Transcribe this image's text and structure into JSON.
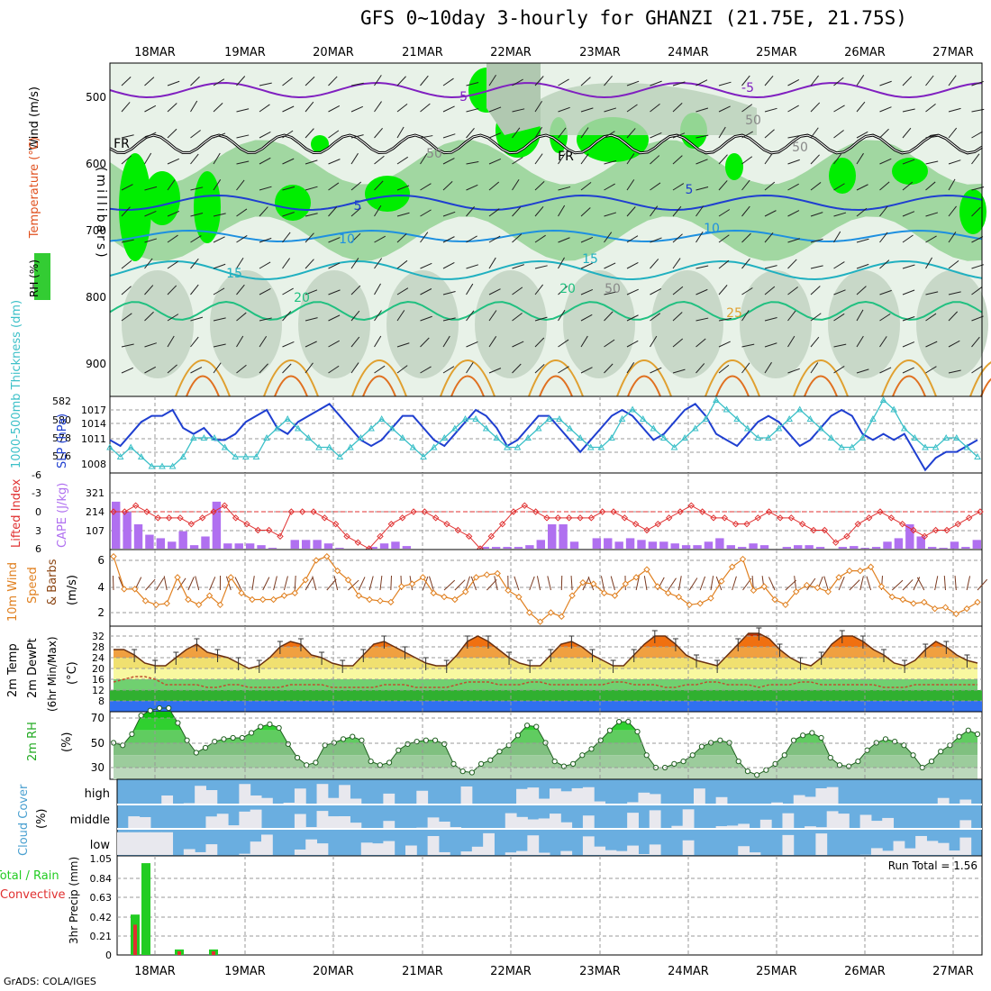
{
  "title": "GFS 0~10day 3-hourly for GHANZI (21.75E, 21.75S)",
  "credit": "GrADS: COLA/IGES",
  "colors": {
    "rh_light": "#dfeedf",
    "rh_mid": "#8fcf8f",
    "rh_dark": "#33cc33",
    "rh_vivid": "#00ee00",
    "slp": "#1f3fd0",
    "thickness": "#3cc0c8",
    "lifted": "#e03030",
    "cape": "#b070f0",
    "wind": "#e08020",
    "temp_bands": [
      "#c03000",
      "#f07010",
      "#f0a040",
      "#f0e070",
      "#f8f8a0",
      "#70d070",
      "#30b030",
      "#3070f0"
    ],
    "cloud_bg": "#6aaee0",
    "cloud_fill": "#e8e8ee",
    "precip_total": "#22cc22",
    "precip_conv": "#e03030"
  },
  "time_axis": {
    "labels": [
      "18MAR",
      "19MAR",
      "20MAR",
      "21MAR",
      "22MAR",
      "23MAR",
      "24MAR",
      "25MAR",
      "26MAR",
      "27MAR"
    ]
  },
  "panels": {
    "upper": {
      "ylabel": "(millibars)",
      "legend_wind": "Wind (m/s)",
      "legend_temp": "Temperature (°C)",
      "legend_rh": "RH (%)",
      "yticks": [
        "500",
        "600",
        "700",
        "800",
        "900"
      ],
      "contour_labels": [
        "-5",
        "-5",
        "FR",
        "FR",
        "5",
        "5",
        "10",
        "10",
        "15",
        "15",
        "20",
        "20",
        "25",
        "50",
        "50",
        "50",
        "50"
      ]
    },
    "slp": {
      "ylabel_left": "1000-500mb Thickness (dm)",
      "ylabel_right": "SLP (hPa)",
      "left_ticks": [
        "582",
        "580",
        "578",
        "576"
      ],
      "right_ticks": [
        "1017",
        "1014",
        "1011",
        "1008"
      ]
    },
    "cape": {
      "ylabel_left": "Lifted Index",
      "ylabel_right": "CAPE (J/kg)",
      "left_ticks": [
        "-6",
        "-3",
        "0",
        "3",
        "6"
      ],
      "right_ticks": [
        "321",
        "214",
        "107"
      ]
    },
    "wind10": {
      "ylabel1": "10m Wind",
      "ylabel2": "Speed",
      "ylabel3": "& Barbs",
      "ylabel4": "(m/s)",
      "ticks": [
        "6",
        "4",
        "2"
      ]
    },
    "temp2m": {
      "ylabel1": "2m Temp",
      "ylabel2": "2m DewPt",
      "ylabel3": "(6hr Min/Max)",
      "ylabel4": "(°C)",
      "ticks": [
        "32",
        "28",
        "24",
        "20",
        "16",
        "12",
        "8"
      ]
    },
    "rh2m": {
      "ylabel1": "2m RH",
      "ylabel2": "(%)",
      "ticks": [
        "70",
        "50",
        "30"
      ]
    },
    "cloud": {
      "ylabel1": "Cloud Cover",
      "ylabel2": "(%)",
      "levels": [
        "high",
        "middle",
        "low"
      ]
    },
    "precip": {
      "ylabel1": "Total / Rain",
      "ylabel2": "Convective",
      "ylabel3": "3hr Precip (mm)",
      "ticks": [
        "1.05",
        "0.84",
        "0.63",
        "0.42",
        "0.21",
        "0"
      ],
      "run_total": "Run Total = 1.56"
    }
  },
  "chart_data": [
    {
      "type": "line",
      "title": "SLP and 1000-500mb Thickness",
      "series": [
        {
          "name": "SLP (hPa)",
          "values": [
            1012,
            1011,
            1013,
            1015,
            1016,
            1016,
            1017,
            1014,
            1013,
            1014,
            1012,
            1012,
            1013,
            1015,
            1016,
            1017,
            1014,
            1013,
            1015,
            1016,
            1017,
            1018,
            1016,
            1014,
            1012,
            1011,
            1012,
            1014,
            1016,
            1016,
            1014,
            1012,
            1011,
            1013,
            1015,
            1017,
            1016,
            1014,
            1011,
            1012,
            1014,
            1016,
            1016,
            1014,
            1012,
            1010,
            1012,
            1014,
            1016,
            1017,
            1016,
            1014,
            1012,
            1013,
            1015,
            1017,
            1018,
            1016,
            1013,
            1012,
            1011,
            1013,
            1015,
            1016,
            1015,
            1013,
            1011,
            1012,
            1014,
            1016,
            1017,
            1016,
            1013,
            1012,
            1013,
            1012,
            1013,
            1010,
            1007,
            1009,
            1010,
            1010,
            1011,
            1012
          ]
        },
        {
          "name": "Thickness (dm)",
          "values": [
            577,
            576,
            577,
            576,
            575,
            575,
            575,
            576,
            578,
            578,
            578,
            577,
            576,
            576,
            576,
            578,
            579,
            580,
            579,
            578,
            577,
            577,
            576,
            577,
            578,
            579,
            580,
            579,
            578,
            577,
            576,
            577,
            578,
            579,
            580,
            580,
            579,
            578,
            577,
            577,
            578,
            579,
            580,
            580,
            579,
            578,
            577,
            577,
            578,
            580,
            581,
            580,
            579,
            578,
            577,
            578,
            579,
            580,
            582,
            581,
            580,
            579,
            578,
            578,
            579,
            580,
            581,
            580,
            579,
            578,
            577,
            577,
            578,
            580,
            582,
            581,
            579,
            578,
            577,
            577,
            578,
            578,
            577,
            576
          ]
        }
      ]
    },
    {
      "type": "bar",
      "title": "Lifted Index and CAPE",
      "series": [
        {
          "name": "CAPE (J/kg)",
          "values": [
            270,
            210,
            140,
            80,
            60,
            40,
            100,
            20,
            70,
            270,
            30,
            30,
            30,
            20,
            5,
            0,
            50,
            50,
            50,
            30,
            5,
            0,
            0,
            10,
            30,
            40,
            15,
            0,
            0,
            0,
            0,
            0,
            0,
            10,
            10,
            10,
            10,
            20,
            50,
            140,
            140,
            40,
            0,
            60,
            60,
            40,
            60,
            50,
            40,
            40,
            30,
            20,
            20,
            40,
            60,
            20,
            10,
            30,
            20,
            0,
            10,
            20,
            20,
            10,
            0,
            10,
            15,
            5,
            10,
            40,
            60,
            140,
            70,
            10,
            5,
            40,
            10,
            50
          ]
        },
        {
          "name": "Lifted Index",
          "values": [
            0,
            0,
            -1,
            0,
            1,
            1,
            1,
            2,
            1,
            0,
            -1,
            1,
            2,
            3,
            3,
            4,
            0,
            0,
            0,
            1,
            2,
            4,
            5,
            6,
            4,
            2,
            1,
            0,
            0,
            1,
            2,
            3,
            4,
            6,
            4,
            2,
            0,
            -1,
            0,
            1,
            1,
            1,
            1,
            1,
            0,
            0,
            1,
            2,
            3,
            2,
            1,
            0,
            -1,
            0,
            1,
            1,
            2,
            2,
            1,
            0,
            1,
            1,
            2,
            3,
            3,
            5,
            4,
            2,
            1,
            0,
            1,
            2,
            3,
            4,
            3,
            3,
            2,
            1,
            0
          ]
        }
      ]
    },
    {
      "type": "line",
      "title": "10m Wind Speed",
      "series": [
        {
          "name": "Speed (m/s)",
          "values": [
            6.3,
            3.8,
            3.8,
            2.9,
            2.6,
            2.7,
            4.7,
            3.0,
            2.6,
            3.3,
            2.6,
            4.7,
            3.5,
            3.0,
            3.0,
            3.0,
            3.3,
            3.5,
            4.5,
            6.0,
            6.3,
            5.2,
            4.5,
            3.3,
            3.0,
            2.9,
            2.8,
            4.0,
            4.2,
            4.7,
            3.5,
            3.2,
            3.0,
            3.6,
            4.7,
            4.9,
            5.0,
            3.7,
            3.2,
            2.0,
            1.3,
            2.0,
            1.7,
            3.3,
            4.3,
            4.2,
            3.5,
            3.3,
            4.2,
            4.7,
            5.3,
            4.0,
            3.5,
            3.2,
            2.6,
            2.7,
            3.1,
            4.4,
            5.5,
            6.1,
            3.7,
            4.0,
            3.0,
            2.6,
            3.6,
            4.1,
            3.9,
            3.6,
            4.7,
            5.2,
            5.2,
            5.5,
            4.0,
            3.2,
            3.0,
            2.7,
            2.8,
            2.3,
            2.4,
            1.9,
            2.3,
            2.8
          ]
        }
      ]
    },
    {
      "type": "area",
      "title": "2m Temp",
      "series": [
        {
          "name": "2m Temp (°C)",
          "values": [
            27,
            27,
            25,
            22,
            21,
            21,
            24,
            27,
            29,
            26,
            25,
            24,
            22,
            20,
            21,
            24,
            28,
            30,
            29,
            25,
            24,
            22,
            21,
            21,
            25,
            29,
            30,
            28,
            26,
            24,
            22,
            21,
            21,
            25,
            30,
            32,
            30,
            27,
            24,
            22,
            21,
            21,
            25,
            29,
            30,
            28,
            25,
            23,
            21,
            21,
            25,
            29,
            32,
            32,
            29,
            25,
            23,
            22,
            21,
            25,
            29,
            33,
            33,
            31,
            27,
            24,
            22,
            21,
            24,
            29,
            32,
            32,
            30,
            27,
            25,
            22,
            21,
            23,
            27,
            30,
            28,
            25,
            23,
            22
          ]
        },
        {
          "name": "2m DewPt (°C)",
          "values": [
            15,
            16,
            17,
            17,
            16,
            14,
            14,
            14,
            14,
            13,
            13,
            14,
            14,
            13,
            13,
            13,
            13,
            14,
            14,
            14,
            14,
            13,
            13,
            13,
            13,
            13,
            14,
            14,
            14,
            13,
            13,
            13,
            13,
            14,
            15,
            15,
            15,
            14,
            14,
            14,
            15,
            15,
            14,
            14,
            14,
            14,
            14,
            14,
            15,
            15,
            14,
            14,
            14,
            13,
            13,
            14,
            14,
            15,
            15,
            14,
            14,
            14,
            13,
            14,
            14,
            14,
            15,
            15,
            14,
            14,
            14,
            14,
            14,
            14,
            13,
            13,
            13,
            14,
            14,
            14,
            14,
            14,
            14,
            14
          ]
        }
      ]
    },
    {
      "type": "area",
      "title": "2m RH",
      "series": [
        {
          "name": "2m RH (%)",
          "values": [
            50,
            48,
            57,
            72,
            76,
            78,
            78,
            66,
            52,
            42,
            46,
            51,
            53,
            54,
            54,
            58,
            63,
            65,
            62,
            49,
            38,
            32,
            34,
            48,
            50,
            53,
            55,
            52,
            35,
            32,
            34,
            44,
            49,
            51,
            52,
            52,
            49,
            33,
            27,
            26,
            33,
            36,
            43,
            48,
            56,
            64,
            63,
            50,
            35,
            31,
            33,
            40,
            45,
            52,
            60,
            67,
            67,
            59,
            40,
            30,
            30,
            33,
            35,
            40,
            47,
            50,
            52,
            50,
            35,
            27,
            24,
            28,
            33,
            40,
            52,
            56,
            58,
            54,
            38,
            32,
            31,
            35,
            44,
            50,
            53,
            51,
            48,
            40,
            30,
            35,
            43,
            48,
            55,
            60,
            57
          ]
        }
      ]
    },
    {
      "type": "bar",
      "title": "3hr Precip",
      "series": [
        {
          "name": "Total / Rain (mm)",
          "values": [
            0.44,
            1.0,
            0,
            0,
            0,
            0,
            0.06,
            0,
            0,
            0,
            0.06
          ]
        },
        {
          "name": "Convective (mm)",
          "values": [
            0.33,
            0,
            0,
            0,
            0,
            0,
            0.04,
            0,
            0,
            0,
            0.04
          ]
        }
      ]
    }
  ]
}
